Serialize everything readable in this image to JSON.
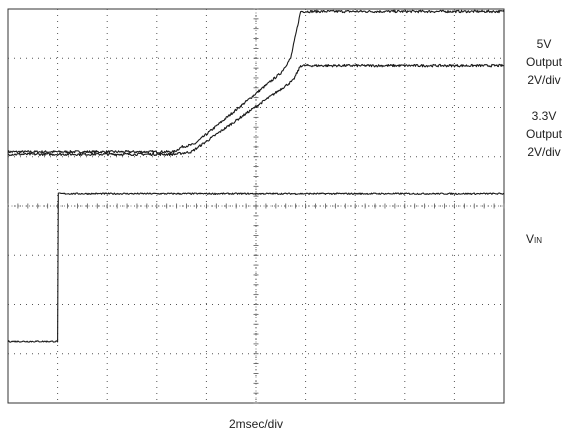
{
  "chart_data": {
    "type": "line",
    "title": "",
    "xlabel": "2msec/div",
    "ylabel": "",
    "grid": true,
    "divisions": {
      "x": 10,
      "y": 8
    },
    "xlim": [
      0,
      20
    ],
    "units": {
      "x": "msec"
    },
    "trace_color": "#1a1a1a",
    "grid_color": "#555555",
    "series": [
      {
        "name": "5V Output",
        "label_lines": [
          "5V",
          "Output",
          "2V/div"
        ],
        "scale": "2V/div",
        "noise": 0.025,
        "points": [
          [
            0,
            5.1
          ],
          [
            6.7,
            5.1
          ],
          [
            7.0,
            5.2
          ],
          [
            7.5,
            5.25
          ],
          [
            11.0,
            6.7
          ],
          [
            11.4,
            7.0
          ],
          [
            11.8,
            7.95
          ],
          [
            20,
            7.95
          ]
        ]
      },
      {
        "name": "3.3V Output",
        "label_lines": [
          "3.3V",
          "Output",
          "2V/div"
        ],
        "scale": "2V/div",
        "noise": 0.025,
        "points": [
          [
            0,
            5.05
          ],
          [
            6.7,
            5.05
          ],
          [
            7.4,
            5.1
          ],
          [
            11.5,
            6.55
          ],
          [
            11.8,
            6.85
          ],
          [
            20,
            6.85
          ]
        ]
      },
      {
        "name": "VIN",
        "label_main": "V",
        "label_sub": "IN",
        "noise": 0.015,
        "points": [
          [
            0,
            1.25
          ],
          [
            2.0,
            1.25
          ],
          [
            2.01,
            4.25
          ],
          [
            20,
            4.25
          ]
        ]
      }
    ]
  }
}
